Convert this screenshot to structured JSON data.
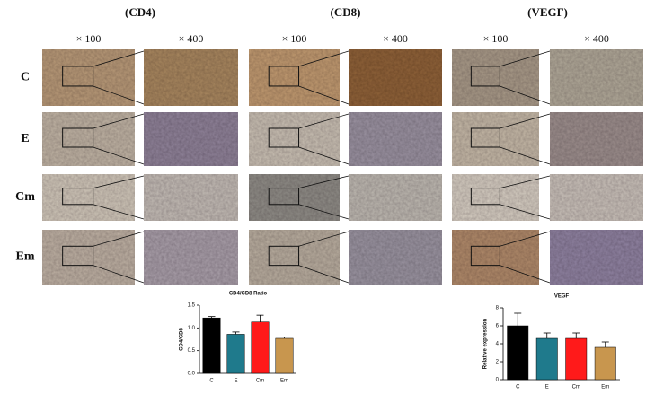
{
  "panel": {
    "columns": [
      {
        "label": "(CD4)",
        "low": "× 100",
        "high": "× 400"
      },
      {
        "label": "(CD8)",
        "low": "× 100",
        "high": "× 400"
      },
      {
        "label": "(VEGF)",
        "low": "× 100",
        "high": "× 400"
      }
    ],
    "rows": [
      "C",
      "E",
      "Cm",
      "Em"
    ]
  },
  "chart_data": [
    {
      "type": "bar",
      "title": "CD4/CD8 Ratio",
      "y_label": "CD4/CD8",
      "categories": [
        "C",
        "E",
        "Cm",
        "Em"
      ],
      "values": [
        1.22,
        0.86,
        1.13,
        0.77
      ],
      "errors": [
        0.03,
        0.05,
        0.15,
        0.03
      ],
      "colors": [
        "#000000",
        "#1f7a8c",
        "#ff1a1a",
        "#c8964e"
      ],
      "ylim": [
        0,
        1.5
      ],
      "yticks": [
        {
          "value": 0,
          "label": "0.0"
        },
        0.5,
        {
          "value": 1,
          "label": "1.0"
        },
        1.5
      ]
    },
    {
      "type": "bar",
      "title": "VEGF",
      "y_label": "Relative expression",
      "categories": [
        "C",
        "E",
        "Cm",
        "Em"
      ],
      "values": [
        6.0,
        4.6,
        4.6,
        3.6
      ],
      "errors": [
        1.4,
        0.6,
        0.6,
        0.6
      ],
      "colors": [
        "#000000",
        "#1f7a8c",
        "#ff1a1a",
        "#c8964e"
      ],
      "ylim": [
        0,
        8
      ],
      "yticks": [
        0,
        2,
        4,
        6,
        8
      ]
    }
  ]
}
